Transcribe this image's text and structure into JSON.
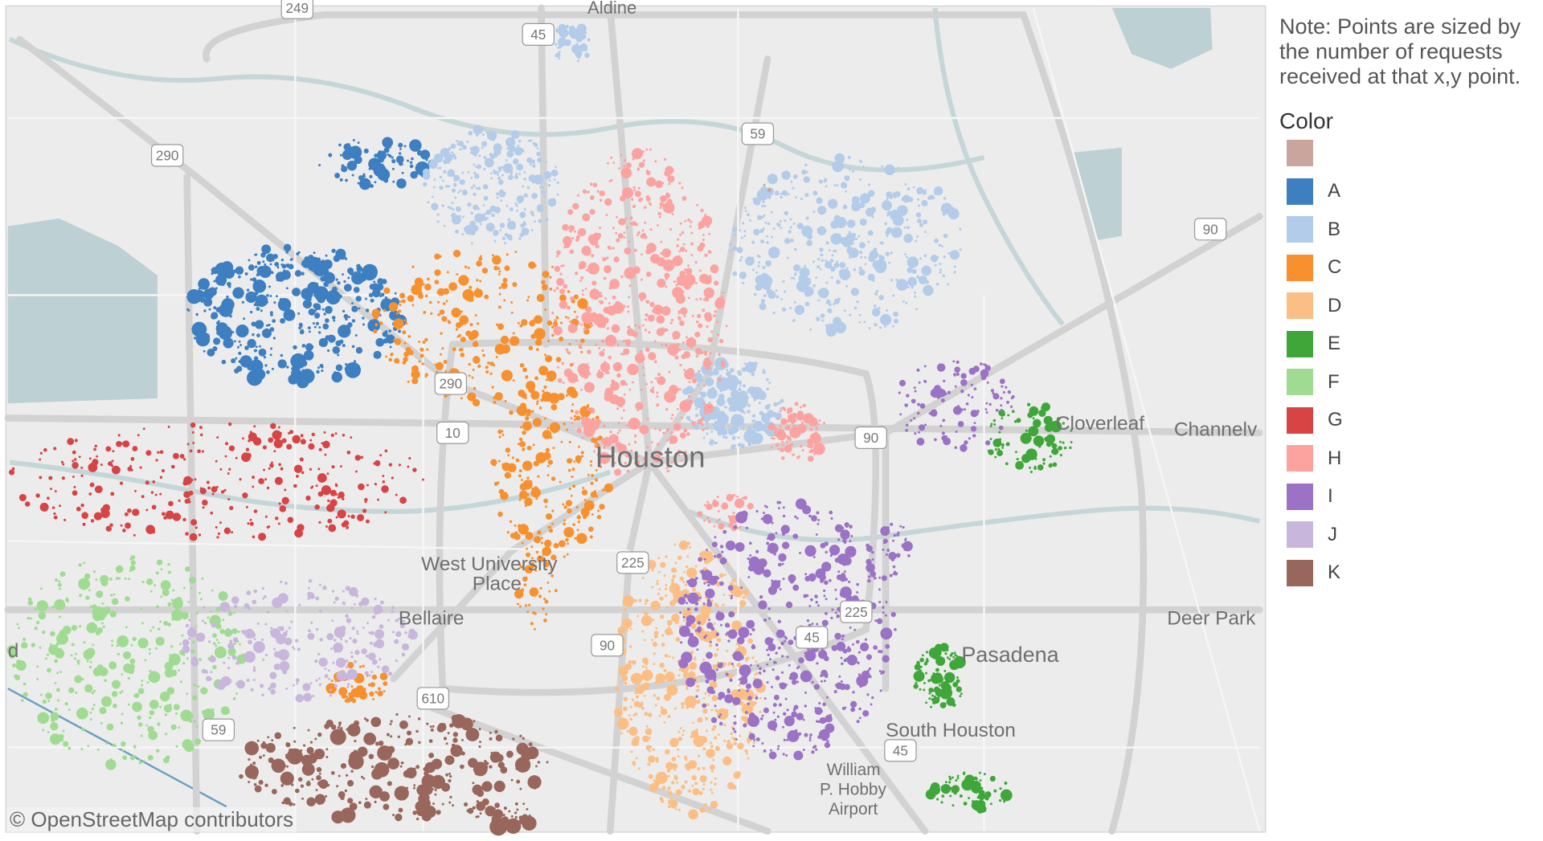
{
  "note": "Note: Points are sized by the number of requests received at that x,y point.",
  "attribution": "© OpenStreetMap contributors",
  "map_labels": {
    "houston": "Houston",
    "west_university": "West University",
    "place": "Place",
    "bellaire": "Bellaire",
    "pasadena": "Pasadena",
    "south_houston": "South Houston",
    "william": "William",
    "p_hobby": "P. Hobby",
    "airport": "Airport",
    "cloverleaf": "Cloverleaf",
    "channelview": "Channelv",
    "deer_park": "Deer Park",
    "aldine": "Aldine",
    "edge_d": "d"
  },
  "highway_shields": [
    "249",
    "45",
    "290",
    "59",
    "90",
    "290",
    "10",
    "90",
    "225",
    "90",
    "610",
    "59",
    "45",
    "225",
    "45"
  ],
  "chart_data": {
    "type": "scatter",
    "basemap": "OpenStreetMap, Houston TX",
    "size_encoding": "number of requests",
    "legend": {
      "title": "Color",
      "placement": "right",
      "items": [
        {
          "label": "",
          "color": "#c9a59e"
        },
        {
          "label": "A",
          "color": "#3d7fc1"
        },
        {
          "label": "B",
          "color": "#b3cce9"
        },
        {
          "label": "C",
          "color": "#f8902e"
        },
        {
          "label": "D",
          "color": "#fbbf86"
        },
        {
          "label": "E",
          "color": "#3fa73a"
        },
        {
          "label": "F",
          "color": "#9fdc92"
        },
        {
          "label": "G",
          "color": "#d84444"
        },
        {
          "label": "H",
          "color": "#fca3a0"
        },
        {
          "label": "I",
          "color": "#9c72c6"
        },
        {
          "label": "J",
          "color": "#c8b6dc"
        },
        {
          "label": "K",
          "color": "#99665b"
        }
      ]
    }
  }
}
